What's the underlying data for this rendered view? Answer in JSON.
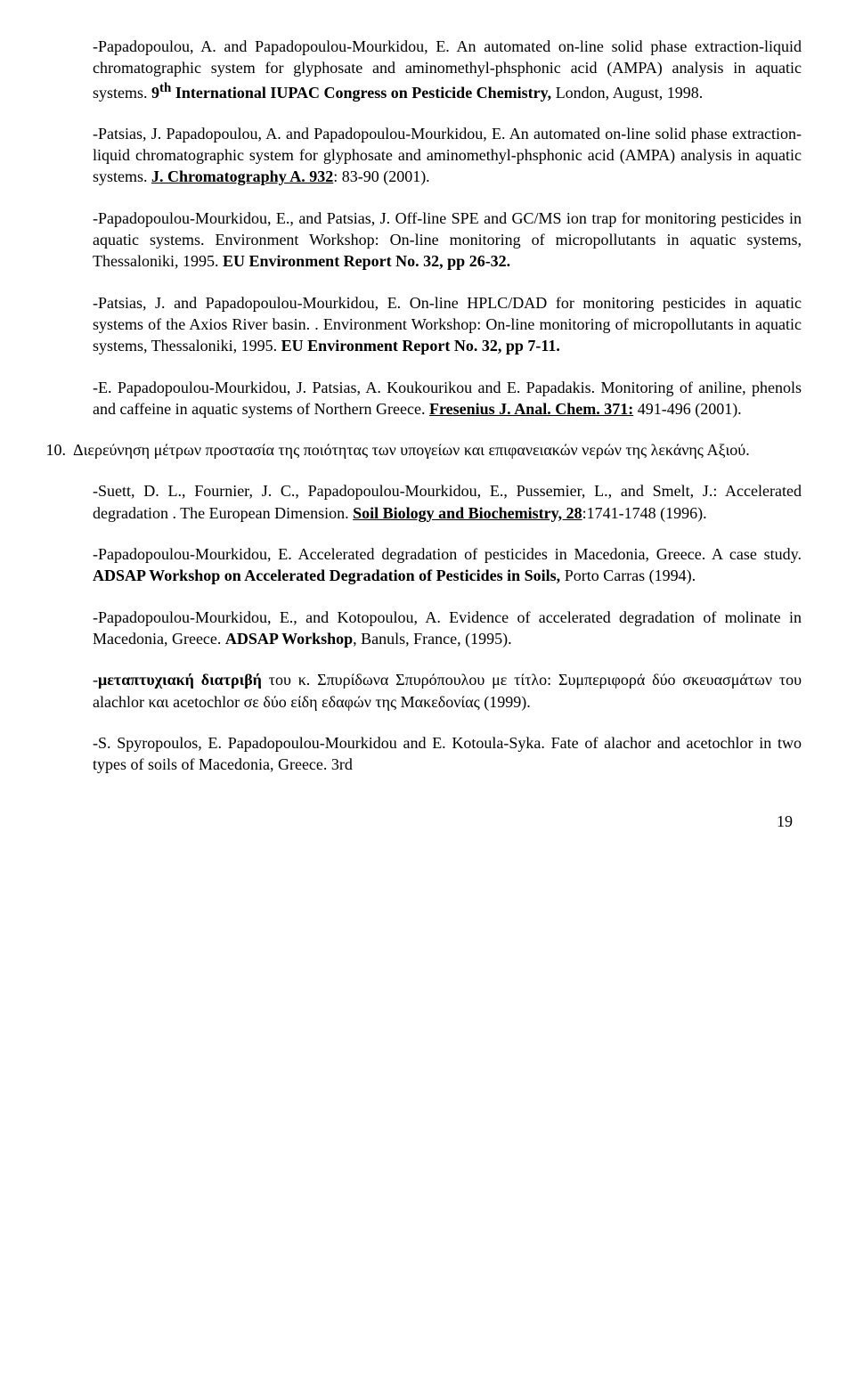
{
  "p1": {
    "a": "-Papadopoulou, A. and Papadopoulou-Mourkidou, E. An automated on-line solid phase extraction-liquid chromatographic system for glyphosate and aminomethyl-phsphonic acid (AMPA) analysis in aquatic systems. ",
    "b": "9",
    "bsup": "th",
    "c": " International IUPAC Congress on Pesticide Chemistry,",
    "d": " London, August, 1998."
  },
  "p2": {
    "a": "-Patsias, J. Papadopoulou, A. and Papadopoulou-Mourkidou, E. An automated on-line solid phase extraction-liquid chromatographic system for glyphosate and aminomethyl-phsphonic acid (AMPA) analysis in aquatic systems. ",
    "b": "J. Chromatography A. 932",
    "c": ": 83-90 (2001)."
  },
  "p3": {
    "a": "-Papadopoulou-Mourkidou, E., and Patsias, J. Off-line SPE and GC/MS ion trap for monitoring pesticides in aquatic systems. Environment Workshop: On-line monitoring of micropollutants in aquatic systems, Thessaloniki, 1995. ",
    "b": "EU Environment Report No. 32, pp 26-32."
  },
  "p4": {
    "a": "-Patsias, J. and Papadopoulou-Mourkidou, E. On-line HPLC/DAD for monitoring pesticides in aquatic systems of the Axios River basin. . Environment Workshop: On-line monitoring of micropollutants in aquatic systems, Thessaloniki, 1995. ",
    "b": "EU Environment Report No. 32, pp 7-11."
  },
  "p5": {
    "a": "-E. Papadopoulou-Mourkidou, J. Patsias, A. Koukourikou and E. Papadakis. Monitoring of aniline, phenols and caffeine in aquatic systems of Northern Greece. ",
    "b": "Fresenius J. Anal. Chem. 371:",
    "c": " 491-496 (2001)."
  },
  "item10": {
    "num": "10.",
    "text": "Διερεύνηση μέτρων προστασία της ποιότητας των υπογείων και επιφανειακών νερών της λεκάνης Αξιού."
  },
  "p6": {
    "a": "-Suett, D. L., Fournier, J. C., Papadopoulou-Mourkidou, E., Pussemier, L., and Smelt, J.: Accelerated degradation . The European Dimension. ",
    "b": "Soil Biology and Biochemistry, 28",
    "c": ":1741-1748 (1996)."
  },
  "p7": {
    "a": "-Papadopoulou-Mourkidou, E. Accelerated degradation of pesticides in Macedonia, Greece. A case study. ",
    "b": "ADSAP Workshop on Accelerated Degradation of Pesticides in Soils,",
    "c": " Porto Carras (1994)."
  },
  "p8": {
    "a": "-Papadopoulou-Mourkidou, E., and Kotopoulou, A. Evidence of accelerated degradation of molinate in Macedonia, Greece. ",
    "b": "ADSAP Workshop",
    "c": ", Banuls, France, (1995)."
  },
  "p9": {
    "a": "-",
    "b": "μεταπτυχιακή διατριβή",
    "c": " του κ. Σπυρίδωνα Σπυρόπουλου με τίτλο: Συμπεριφορά δύο σκευασμάτων του alachlor και acetochlor  σε δύο είδη εδαφών της Μακεδονίας (1999)."
  },
  "p10": {
    "a": "-S. Spyropoulos, E. Papadopoulou-Mourkidou and E. Kotoula-Syka. Fate of alachor and acetochlor in two types of soils of Macedonia, Greece. 3rd"
  },
  "pagenum": "19"
}
